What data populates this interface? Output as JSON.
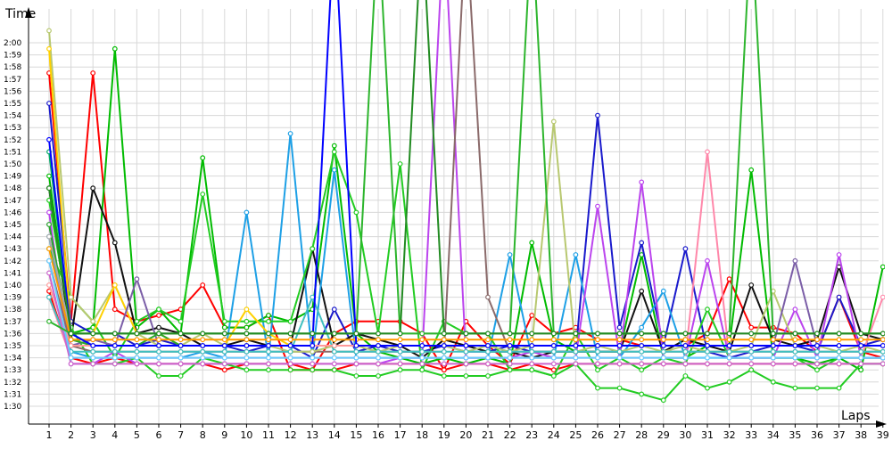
{
  "chart_data": {
    "type": "line",
    "title": "",
    "xlabel": "Laps",
    "ylabel": "Time",
    "x": [
      1,
      2,
      3,
      4,
      5,
      6,
      7,
      8,
      9,
      10,
      11,
      12,
      13,
      14,
      15,
      16,
      17,
      18,
      19,
      20,
      21,
      22,
      23,
      24,
      25,
      26,
      27,
      28,
      29,
      30,
      31,
      32,
      33,
      34,
      35,
      36,
      37,
      38,
      39
    ],
    "x_tick_labels": [
      "1",
      "2",
      "3",
      "4",
      "5",
      "6",
      "7",
      "8",
      "9",
      "10",
      "11",
      "12",
      "13",
      "14",
      "15",
      "16",
      "17",
      "18",
      "19",
      "20",
      "21",
      "22",
      "23",
      "24",
      "25",
      "26",
      "27",
      "28",
      "29",
      "30",
      "31",
      "32",
      "33",
      "34",
      "35",
      "36",
      "37",
      "38",
      "39"
    ],
    "y_unit": "seconds",
    "ylim": [
      89,
      121
    ],
    "y_ticks": [
      90,
      91,
      92,
      93,
      94,
      95,
      96,
      97,
      98,
      99,
      100,
      101,
      102,
      103,
      104,
      105,
      106,
      107,
      108,
      109,
      110,
      111,
      112,
      113,
      114,
      115,
      116,
      117,
      118,
      119,
      120
    ],
    "y_tick_labels": [
      "1:30",
      "1:31",
      "1:32",
      "1:33",
      "1:34",
      "1:35",
      "1:36",
      "1:37",
      "1:38",
      "1:39",
      "1:40",
      "1:41",
      "1:42",
      "1:43",
      "1:44",
      "1:45",
      "1:46",
      "1:47",
      "1:48",
      "1:49",
      "1:50",
      "1:51",
      "1:52",
      "1:53",
      "1:54",
      "1:55",
      "1:56",
      "1:57",
      "1:58",
      "1:59",
      "2:00"
    ],
    "grid": true,
    "legend": "none",
    "series": [
      {
        "color": "#ff0000",
        "values": [
          117.5,
          97,
          117.5,
          98,
          97,
          97.5,
          98,
          100,
          96.5,
          96.5,
          97.5,
          93,
          93,
          96,
          97,
          97,
          97,
          96,
          93,
          97,
          95,
          93.5,
          97.5,
          96,
          96.5,
          95.5,
          95.5,
          95,
          95,
          95,
          96,
          100.5,
          96.5,
          96.5,
          96,
          94.5,
          99,
          94.5,
          94
        ]
      },
      {
        "color": "#ff0000",
        "values": [
          99.5,
          94,
          93.5,
          94,
          93.5,
          93.5,
          93.5,
          93.5,
          93,
          93.5,
          93.5,
          93.5,
          93,
          93,
          93.5,
          93.5,
          93.5,
          93.5,
          93,
          93.5,
          93.5,
          93,
          93.5,
          93,
          93.5,
          93.5,
          93.5,
          93.5,
          93.5,
          93.5,
          93.5,
          93.5,
          93.5,
          93.5,
          93.5,
          93.5,
          93.5,
          93.5,
          93.5
        ]
      },
      {
        "color": "#00bb00",
        "values": [
          109,
          96,
          96.5,
          119.5,
          96.5,
          98,
          96,
          110.5,
          96.5,
          96.5,
          97.5,
          97,
          98,
          111.5,
          96,
          94.5,
          94,
          93.5,
          94,
          93.5,
          94,
          93.5,
          103.5,
          95.5,
          94.5,
          94.5,
          94.5,
          102.5,
          94,
          94,
          95,
          95,
          109.5,
          94,
          94,
          93.5,
          94,
          93,
          101.5
        ]
      },
      {
        "color": "#1a1acc",
        "values": [
          115,
          97,
          96,
          96,
          95,
          95.5,
          95,
          95,
          95,
          94.5,
          95,
          95,
          94,
          98,
          94.5,
          95,
          94.5,
          94.5,
          95,
          94.5,
          94.5,
          95,
          94.5,
          94.5,
          94.5,
          114,
          96.5,
          103.5,
          95,
          103,
          94.5,
          94,
          94.5,
          95,
          95,
          94.5,
          99,
          95,
          95.5
        ]
      },
      {
        "color": "#111111",
        "values": [
          108,
          95.5,
          108,
          103.5,
          96,
          96.5,
          96,
          95,
          95,
          95.5,
          95,
          95,
          103,
          95,
          96,
          95.5,
          95,
          94,
          95.5,
          95,
          94.5,
          94.5,
          94,
          94.5,
          94.5,
          94.5,
          94.5,
          99.5,
          94.5,
          95.5,
          95,
          94.5,
          100,
          95.5,
          95,
          95.5,
          101.5,
          96,
          95.5
        ]
      },
      {
        "color": "#1ea0e6",
        "values": [
          104,
          94.5,
          94,
          94,
          94,
          94,
          94,
          94.5,
          94,
          106,
          94,
          112.5,
          94,
          109.5,
          94,
          94,
          94,
          94,
          94,
          94,
          94,
          102.5,
          94,
          94,
          102.5,
          94,
          94,
          96.5,
          99.5,
          94,
          94,
          94,
          94,
          94,
          94,
          94,
          94,
          94,
          94
        ]
      },
      {
        "color": "#22cc22",
        "values": [
          107,
          96.5,
          93.5,
          93.5,
          94,
          92.5,
          92.5,
          94,
          93.5,
          93,
          93,
          93,
          93,
          93,
          92.5,
          92.5,
          93,
          93,
          92.5,
          92.5,
          92.5,
          93,
          93,
          92.5,
          93.5,
          91.5,
          91.5,
          91,
          90.5,
          92.5,
          91.5,
          92,
          93,
          92,
          91.5,
          91.5,
          91.5,
          93.5,
          93.5
        ]
      },
      {
        "color": "#22cc22",
        "values": [
          103,
          99,
          97,
          94,
          97,
          98,
          97,
          107.5,
          97,
          97,
          97,
          97,
          103,
          111,
          106,
          96,
          110,
          93,
          97,
          96,
          96,
          93,
          93,
          92.5,
          96,
          93,
          94,
          93,
          94,
          93.5,
          98,
          94,
          94,
          94,
          94,
          93,
          94,
          94,
          94
        ]
      },
      {
        "color": "#bb44ee",
        "values": [
          106,
          93.5,
          93.5,
          94.5,
          93.5,
          93.5,
          93.5,
          93.5,
          93.5,
          93.5,
          93.5,
          93.5,
          93.5,
          93.5,
          93.5,
          93.5,
          94,
          94,
          130,
          94,
          94,
          94,
          94.5,
          94,
          94,
          106.5,
          94,
          108.5,
          94,
          94,
          102,
          94,
          94,
          94,
          98,
          94,
          102.5,
          94,
          94
        ]
      },
      {
        "color": "#8a6a6a",
        "values": [
          102,
          95,
          94.5,
          94.5,
          94.5,
          94.5,
          94.5,
          94.5,
          94.5,
          94.5,
          94.5,
          94.5,
          94.5,
          94.5,
          94.5,
          94.5,
          94.5,
          94.5,
          94.5,
          130,
          99,
          94.5,
          94.5,
          94.5,
          94.5,
          94.5,
          94.5,
          94.5,
          94.5,
          94.5,
          94.5,
          94.5,
          94.5,
          94.5,
          94.5,
          94.5,
          94.5,
          94.5,
          94.5
        ]
      },
      {
        "color": "#b8c870",
        "values": [
          121,
          99,
          97,
          100,
          96,
          95,
          95,
          96,
          95,
          95,
          95,
          94.5,
          94.5,
          95,
          95,
          94.5,
          95,
          95,
          95,
          94.5,
          95,
          94.5,
          95,
          113.5,
          94.5,
          95,
          94.5,
          95,
          94.5,
          95,
          94.5,
          94.5,
          95,
          99.5,
          95,
          95,
          94.5,
          95,
          94.5
        ]
      },
      {
        "color": "#ff88aa",
        "values": [
          99,
          94,
          94,
          94,
          94,
          94,
          94,
          94,
          94,
          94,
          94,
          94,
          94,
          94,
          94,
          94,
          94,
          94,
          94,
          94,
          94,
          94,
          94,
          94,
          94,
          94,
          94,
          94,
          94,
          94,
          111,
          94,
          94,
          94,
          94,
          94,
          94,
          94,
          99
        ]
      },
      {
        "color": "#ffd000",
        "values": [
          119.5,
          96,
          96,
          100,
          96,
          96,
          95,
          95,
          95,
          98,
          96,
          95,
          95,
          95,
          95,
          95,
          95,
          95,
          95,
          95,
          95,
          95,
          95,
          95,
          95,
          95,
          95,
          95,
          95,
          95,
          95,
          95,
          95,
          95,
          95,
          95,
          95,
          95,
          95
        ]
      },
      {
        "color": "#7b5ea7",
        "values": [
          105,
          95,
          95.5,
          95,
          100.5,
          95,
          95,
          95,
          95,
          95,
          95,
          95,
          95,
          95,
          95,
          95,
          95,
          95,
          95,
          95,
          95,
          95,
          95,
          95,
          95,
          95,
          95,
          95,
          95,
          95,
          95,
          95,
          95,
          95,
          102,
          95,
          95,
          95,
          95
        ]
      },
      {
        "color": "#40c0c0",
        "values": [
          99,
          94.5,
          94.5,
          94.5,
          94.5,
          94.5,
          94.5,
          94.5,
          94.5,
          94.5,
          94.5,
          94.5,
          99,
          94.5,
          94.5,
          94.5,
          94.5,
          94.5,
          94.5,
          94.5,
          94.5,
          94.5,
          94.5,
          94.5,
          94.5,
          94.5,
          94.5,
          94.5,
          94.5,
          94.5,
          94.5,
          94.5,
          94.5,
          94.5,
          94.5,
          94.5,
          94.5,
          94.5,
          94.5
        ]
      },
      {
        "color": "#00aa66",
        "values": [
          111,
          96,
          95,
          95,
          95,
          95,
          95,
          95,
          95,
          95,
          95,
          95,
          95,
          95,
          95,
          95,
          95,
          95,
          95,
          95,
          95,
          95,
          95,
          95,
          95,
          95,
          95,
          95,
          95,
          95,
          95,
          95,
          95,
          95,
          95,
          95,
          95,
          95,
          95
        ]
      },
      {
        "color": "#2aa82a",
        "values": [
          105,
          95.5,
          95,
          95,
          95,
          96,
          95,
          95,
          95,
          95,
          95,
          95,
          95,
          95,
          95,
          95,
          95,
          95,
          95,
          95,
          95,
          95,
          95,
          95,
          95,
          95,
          95,
          95,
          95,
          95,
          95,
          95,
          95,
          95,
          95,
          95,
          95,
          95,
          95
        ]
      },
      {
        "color": "#ff9999",
        "values": [
          100,
          95,
          95,
          95,
          95,
          95,
          95,
          95,
          95,
          95,
          95,
          95,
          95,
          95,
          95,
          95,
          95,
          95,
          95,
          95,
          95,
          95,
          95,
          95,
          95,
          95,
          95,
          95,
          95,
          95,
          95,
          95,
          95,
          95,
          95,
          95,
          95,
          95,
          95
        ]
      },
      {
        "color": "#aaaaaa",
        "values": [
          104,
          96,
          96,
          96,
          96,
          96,
          96,
          96,
          96,
          96,
          96,
          96,
          96,
          96,
          96,
          96,
          96,
          96,
          96,
          96,
          96,
          96,
          96,
          96,
          96,
          96,
          96,
          96,
          96,
          96,
          96,
          96,
          96,
          96,
          96,
          96,
          96,
          96,
          96
        ]
      },
      {
        "color": "#ff9900",
        "values": [
          103,
          95.5,
          95.5,
          95.5,
          95.5,
          95.5,
          95.5,
          95.5,
          95.5,
          95.5,
          95.5,
          95.5,
          95.5,
          95.5,
          95.5,
          95.5,
          95.5,
          95.5,
          95.5,
          95.5,
          95.5,
          95.5,
          95.5,
          95.5,
          95.5,
          95.5,
          95.5,
          95.5,
          95.5,
          95.5,
          95.5,
          95.5,
          95.5,
          95.5,
          95.5,
          95.5,
          95.5,
          95.5,
          95.5
        ]
      },
      {
        "color": "#cc66cc",
        "values": [
          101,
          93.5,
          93.5,
          93.5,
          93.5,
          93.5,
          93.5,
          93.5,
          93.5,
          93.5,
          93.5,
          93.5,
          93.5,
          93.5,
          93.5,
          93.5,
          93.5,
          93.5,
          93.5,
          93.5,
          93.5,
          93.5,
          93.5,
          93.5,
          93.5,
          93.5,
          93.5,
          93.5,
          93.5,
          93.5,
          93.5,
          93.5,
          93.5,
          93.5,
          93.5,
          93.5,
          93.5,
          93.5,
          93.5
        ]
      },
      {
        "color": "#66ccff",
        "values": [
          102,
          94,
          94,
          94,
          94,
          94,
          94,
          94,
          94,
          94,
          94,
          94,
          94,
          94,
          94,
          94,
          94,
          94,
          94,
          94,
          94,
          94,
          94,
          94,
          94,
          94,
          94,
          94,
          94,
          94,
          94,
          94,
          94,
          94,
          94,
          94,
          94,
          94,
          94
        ]
      },
      {
        "color": "#0000ff",
        "values": [
          112,
          96,
          95,
          95,
          95,
          95,
          95,
          95,
          95,
          95,
          95,
          95,
          95,
          130,
          95,
          95,
          95,
          95,
          95,
          95,
          95,
          95,
          95,
          95,
          95,
          95,
          95,
          95,
          95,
          95,
          95,
          95,
          95,
          95,
          95,
          95,
          95,
          95,
          95
        ]
      },
      {
        "color": "#2db52d",
        "values": [
          97,
          96,
          96,
          96,
          96,
          96,
          96,
          96,
          96,
          96,
          96,
          96,
          96,
          96,
          96,
          130,
          96,
          96,
          96,
          96,
          96,
          96,
          130,
          96,
          96,
          96,
          96,
          96,
          96,
          96,
          96,
          96,
          130,
          96,
          96,
          96,
          96,
          96,
          96
        ]
      },
      {
        "color": "#228b22",
        "values": [
          108,
          96,
          96,
          96,
          96,
          96,
          96,
          96,
          96,
          96,
          96,
          96,
          96,
          96,
          96,
          96,
          96,
          130,
          96,
          96,
          96,
          96,
          96,
          96,
          96,
          96,
          96,
          96,
          96,
          96,
          96,
          96,
          96,
          96,
          96,
          96,
          96,
          96,
          96
        ]
      }
    ]
  }
}
